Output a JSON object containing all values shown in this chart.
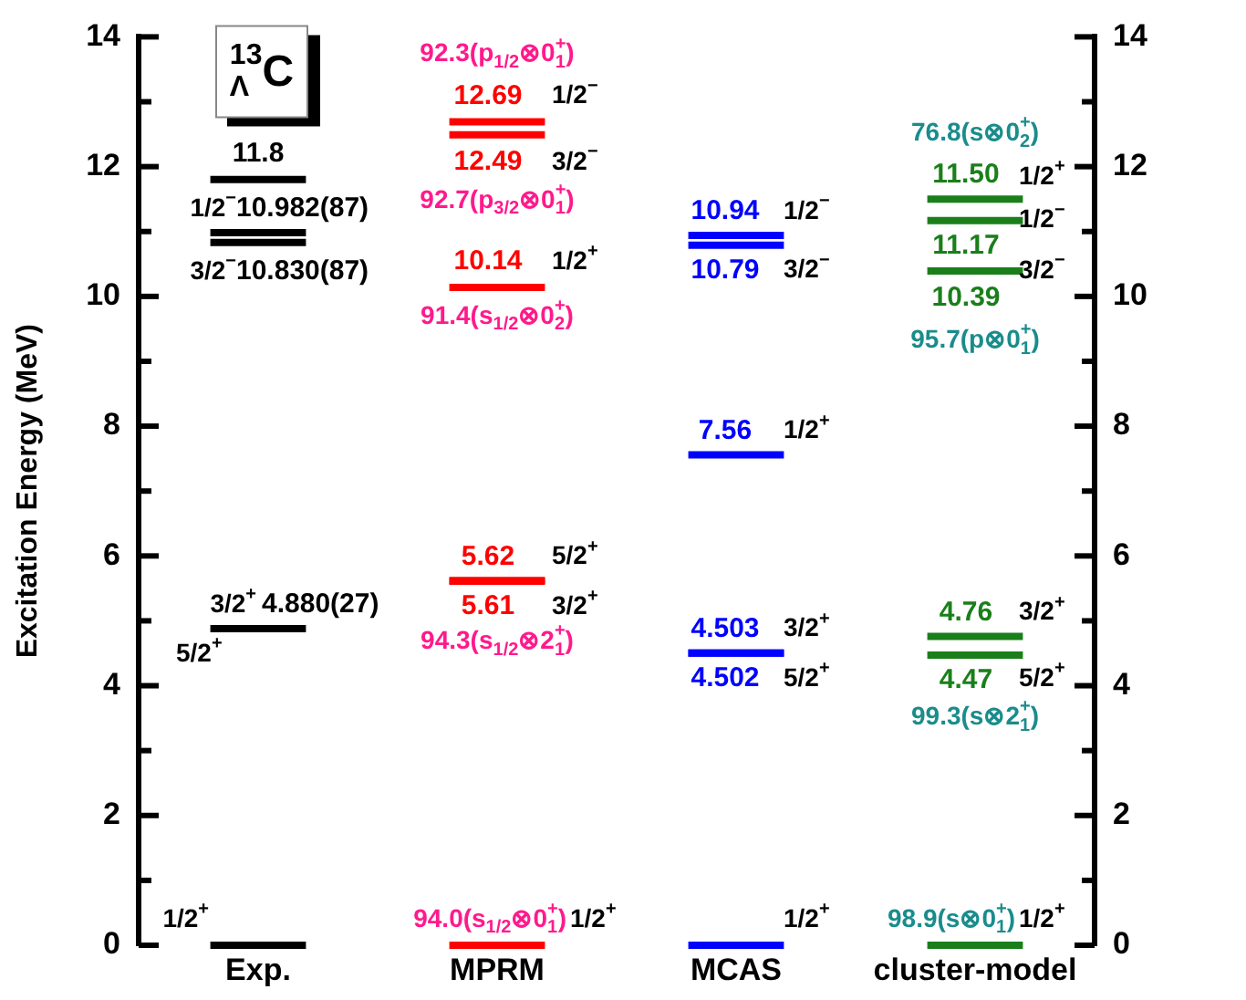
{
  "chart_data": {
    "type": "line",
    "ylabel": "Excitation Energy (MeV)",
    "categories": [
      null,
      null,
      "Exp.",
      null,
      null,
      null,
      null,
      "MPRM",
      null,
      null,
      null,
      null,
      "MCAS",
      null,
      null,
      null,
      null,
      "cluster-model",
      null,
      null
    ],
    "ylim": [
      0,
      14
    ],
    "yticks": [
      0,
      {
        "value": 1,
        "label": null
      },
      2,
      {
        "value": 3,
        "label": null
      },
      4,
      {
        "value": 5,
        "label": null
      },
      6,
      {
        "value": 7,
        "label": null
      },
      8,
      {
        "value": 9,
        "label": null
      },
      10,
      {
        "value": 11,
        "label": null
      },
      12,
      {
        "value": 13,
        "label": null
      },
      14
    ],
    "y2lim": [
      0,
      14
    ],
    "y2ticks": [
      0,
      {
        "value": 1,
        "label": null
      },
      2,
      {
        "value": 3,
        "label": null
      },
      4,
      {
        "value": 5,
        "label": null
      },
      6,
      {
        "value": 7,
        "label": null
      },
      8,
      {
        "value": 9,
        "label": null
      },
      10,
      {
        "value": 11,
        "label": null
      },
      12,
      {
        "value": 13,
        "label": null
      },
      14
    ],
    "series": [
      {
        "color": "#000000",
        "values": [
          null,
          0,
          0,
          0,
          null,
          null,
          null,
          null,
          null,
          null,
          null,
          null,
          null,
          null,
          null,
          null,
          null,
          null,
          null,
          null
        ]
      },
      {
        "color": "#000000",
        "values": [
          null,
          4.88,
          4.88,
          4.88,
          null,
          null,
          null,
          null,
          null,
          null,
          null,
          null,
          null,
          null,
          null,
          null,
          null,
          null,
          null,
          null
        ],
        "value_labels": [
          null,
          null,
          "4.880(27)",
          null,
          null,
          null,
          null,
          null,
          null,
          null,
          null,
          null,
          null,
          null,
          null,
          null,
          null,
          null,
          null,
          null
        ]
      },
      {
        "color": "#000000",
        "values": [
          null,
          10.83,
          10.83,
          10.83,
          null,
          null,
          null,
          null,
          null,
          null,
          null,
          null,
          null,
          null,
          null,
          null,
          null,
          null,
          null,
          null
        ],
        "value_labels": [
          null,
          null,
          "10.830(87)",
          null,
          null,
          null,
          null,
          null,
          null,
          null,
          null,
          null,
          null,
          null,
          null,
          null,
          null,
          null,
          null,
          null
        ]
      },
      {
        "color": "#000000",
        "values": [
          null,
          10.982,
          10.982,
          10.982,
          null,
          null,
          null,
          null,
          null,
          null,
          null,
          null,
          null,
          null,
          null,
          null,
          null,
          null,
          null,
          null
        ],
        "value_labels": [
          null,
          null,
          "10.982(87)",
          null,
          null,
          null,
          null,
          null,
          null,
          null,
          null,
          null,
          null,
          null,
          null,
          null,
          null,
          null,
          null,
          null
        ]
      },
      {
        "color": "#000000",
        "values": [
          null,
          11.8,
          11.8,
          11.8,
          null,
          null,
          null,
          null,
          null,
          null,
          null,
          null,
          null,
          null,
          null,
          null,
          null,
          null,
          null,
          null
        ],
        "value_labels": [
          null,
          null,
          "11.8",
          null,
          null,
          null,
          null,
          null,
          null,
          null,
          null,
          null,
          null,
          null,
          null,
          null,
          null,
          null,
          null,
          null
        ]
      },
      {
        "color": "#ff0000",
        "values": [
          null,
          null,
          null,
          null,
          null,
          null,
          0,
          0,
          0,
          null,
          null,
          null,
          null,
          null,
          null,
          null,
          null,
          null,
          null,
          null
        ]
      },
      {
        "color": "#ff0000",
        "values": [
          null,
          null,
          null,
          null,
          null,
          null,
          5.61,
          5.61,
          5.61,
          null,
          null,
          null,
          null,
          null,
          null,
          null,
          null,
          null,
          null,
          null
        ],
        "value_labels": [
          null,
          null,
          null,
          null,
          null,
          null,
          null,
          "5.61",
          null,
          null,
          null,
          null,
          null,
          null,
          null,
          null,
          null,
          null,
          null,
          null
        ]
      },
      {
        "color": "#ff0000",
        "values": [
          null,
          null,
          null,
          null,
          null,
          null,
          5.62,
          5.62,
          5.62,
          null,
          null,
          null,
          null,
          null,
          null,
          null,
          null,
          null,
          null,
          null
        ],
        "value_labels": [
          null,
          null,
          null,
          null,
          null,
          null,
          null,
          "5.62",
          null,
          null,
          null,
          null,
          null,
          null,
          null,
          null,
          null,
          null,
          null,
          null
        ]
      },
      {
        "color": "#ff0000",
        "values": [
          null,
          null,
          null,
          null,
          null,
          null,
          10.14,
          10.14,
          10.14,
          null,
          null,
          null,
          null,
          null,
          null,
          null,
          null,
          null,
          null,
          null
        ],
        "value_labels": [
          null,
          null,
          null,
          null,
          null,
          null,
          null,
          "10.14",
          null,
          null,
          null,
          null,
          null,
          null,
          null,
          null,
          null,
          null,
          null,
          null
        ]
      },
      {
        "color": "#ff0000",
        "values": [
          null,
          null,
          null,
          null,
          null,
          null,
          12.49,
          12.49,
          12.49,
          null,
          null,
          null,
          null,
          null,
          null,
          null,
          null,
          null,
          null,
          null
        ],
        "value_labels": [
          null,
          null,
          null,
          null,
          null,
          null,
          null,
          "12.49",
          null,
          null,
          null,
          null,
          null,
          null,
          null,
          null,
          null,
          null,
          null,
          null
        ]
      },
      {
        "color": "#ff0000",
        "values": [
          null,
          null,
          null,
          null,
          null,
          null,
          12.69,
          12.69,
          12.69,
          null,
          null,
          null,
          null,
          null,
          null,
          null,
          null,
          null,
          null,
          null
        ],
        "value_labels": [
          null,
          null,
          null,
          null,
          null,
          null,
          null,
          "12.69",
          null,
          null,
          null,
          null,
          null,
          null,
          null,
          null,
          null,
          null,
          null,
          null
        ]
      },
      {
        "color": "#0000ff",
        "values": [
          null,
          null,
          null,
          null,
          null,
          null,
          null,
          null,
          null,
          null,
          null,
          0,
          0,
          0,
          null,
          null,
          null,
          null,
          null,
          null
        ]
      },
      {
        "color": "#0000ff",
        "values": [
          null,
          null,
          null,
          null,
          null,
          null,
          null,
          null,
          null,
          null,
          null,
          4.502,
          4.502,
          4.502,
          null,
          null,
          null,
          null,
          null,
          null
        ],
        "value_labels": [
          null,
          null,
          null,
          null,
          null,
          null,
          null,
          null,
          null,
          null,
          null,
          null,
          "4.502",
          null,
          null,
          null,
          null,
          null,
          null,
          null
        ]
      },
      {
        "color": "#0000ff",
        "values": [
          null,
          null,
          null,
          null,
          null,
          null,
          null,
          null,
          null,
          null,
          null,
          4.503,
          4.503,
          4.503,
          null,
          null,
          null,
          null,
          null,
          null
        ],
        "value_labels": [
          null,
          null,
          null,
          null,
          null,
          null,
          null,
          null,
          null,
          null,
          null,
          null,
          "4.503",
          null,
          null,
          null,
          null,
          null,
          null,
          null
        ]
      },
      {
        "color": "#0000ff",
        "values": [
          null,
          null,
          null,
          null,
          null,
          null,
          null,
          null,
          null,
          null,
          null,
          7.56,
          7.56,
          7.56,
          null,
          null,
          null,
          null,
          null,
          null
        ],
        "value_labels": [
          null,
          null,
          null,
          null,
          null,
          null,
          null,
          null,
          null,
          null,
          null,
          null,
          "7.56",
          null,
          null,
          null,
          null,
          null,
          null,
          null
        ]
      },
      {
        "color": "#0000ff",
        "values": [
          null,
          null,
          null,
          null,
          null,
          null,
          null,
          null,
          null,
          null,
          null,
          10.79,
          10.79,
          10.79,
          null,
          null,
          null,
          null,
          null,
          null
        ],
        "value_labels": [
          null,
          null,
          null,
          null,
          null,
          null,
          null,
          null,
          null,
          null,
          null,
          null,
          "10.79",
          null,
          null,
          null,
          null,
          null,
          null,
          null
        ]
      },
      {
        "color": "#0000ff",
        "values": [
          null,
          null,
          null,
          null,
          null,
          null,
          null,
          null,
          null,
          null,
          null,
          10.94,
          10.94,
          10.94,
          null,
          null,
          null,
          null,
          null,
          null
        ],
        "value_labels": [
          null,
          null,
          null,
          null,
          null,
          null,
          null,
          null,
          null,
          null,
          null,
          null,
          "10.94",
          null,
          null,
          null,
          null,
          null,
          null,
          null
        ]
      },
      {
        "color": "#1a7f1a",
        "values": [
          null,
          null,
          null,
          null,
          null,
          null,
          null,
          null,
          null,
          null,
          null,
          null,
          null,
          null,
          null,
          null,
          0,
          0,
          0,
          null
        ]
      },
      {
        "color": "#1a7f1a",
        "values": [
          null,
          null,
          null,
          null,
          null,
          null,
          null,
          null,
          null,
          null,
          null,
          null,
          null,
          null,
          null,
          null,
          4.47,
          4.47,
          4.47,
          null
        ],
        "value_labels": [
          null,
          null,
          null,
          null,
          null,
          null,
          null,
          null,
          null,
          null,
          null,
          null,
          null,
          null,
          null,
          null,
          null,
          "4.47",
          null,
          null
        ]
      },
      {
        "color": "#1a7f1a",
        "values": [
          null,
          null,
          null,
          null,
          null,
          null,
          null,
          null,
          null,
          null,
          null,
          null,
          null,
          null,
          null,
          null,
          4.76,
          4.76,
          4.76,
          null
        ],
        "value_labels": [
          null,
          null,
          null,
          null,
          null,
          null,
          null,
          null,
          null,
          null,
          null,
          null,
          null,
          null,
          null,
          null,
          null,
          "4.76",
          null,
          null
        ]
      },
      {
        "color": "#1a7f1a",
        "values": [
          null,
          null,
          null,
          null,
          null,
          null,
          null,
          null,
          null,
          null,
          null,
          null,
          null,
          null,
          null,
          null,
          10.39,
          10.39,
          10.39,
          null
        ],
        "value_labels": [
          null,
          null,
          null,
          null,
          null,
          null,
          null,
          null,
          null,
          null,
          null,
          null,
          null,
          null,
          null,
          null,
          null,
          "10.39",
          null,
          null
        ]
      },
      {
        "color": "#1a7f1a",
        "values": [
          null,
          null,
          null,
          null,
          null,
          null,
          null,
          null,
          null,
          null,
          null,
          null,
          null,
          null,
          null,
          null,
          11.17,
          11.17,
          11.17,
          null
        ],
        "value_labels": [
          null,
          null,
          null,
          null,
          null,
          null,
          null,
          null,
          null,
          null,
          null,
          null,
          null,
          null,
          null,
          null,
          null,
          "11.17",
          null,
          null
        ]
      },
      {
        "color": "#1a7f1a",
        "values": [
          null,
          null,
          null,
          null,
          null,
          null,
          null,
          null,
          null,
          null,
          null,
          null,
          null,
          null,
          null,
          null,
          11.5,
          11.5,
          11.5,
          null
        ],
        "value_labels": [
          null,
          null,
          null,
          null,
          null,
          null,
          null,
          null,
          null,
          null,
          null,
          null,
          null,
          null,
          null,
          null,
          null,
          "11.50",
          null,
          null
        ]
      }
    ],
    "annotations": [
      {
        "text": "1/2$^{+}$",
        "x": "Exp.",
        "y": 0
      },
      {
        "text": "3/2$^{+}$",
        "x": "Exp.",
        "y": 4.88
      },
      {
        "text": "5/2$^{+}$",
        "x": "Exp.",
        "y": 4.88
      },
      {
        "text": "1/2$^{−}$",
        "x": "Exp.",
        "y": 10.982
      },
      {
        "text": "3/2$^{−}$",
        "x": "Exp.",
        "y": 10.83
      },
      {
        "text": "92.3(p$_{1/2}$⊗0$^{+}$$_{1}$)",
        "x": "MPRM",
        "y": 12.69
      },
      {
        "text": "1/2$^{−}$",
        "x": "MPRM",
        "y": 12.69
      },
      {
        "text": "3/2$^{−}$",
        "x": "MPRM",
        "y": 12.49
      },
      {
        "text": "92.7(p$_{3/2}$⊗0$^{+}$$_{1}$)",
        "x": "MPRM",
        "y": 12.49
      },
      {
        "text": "1/2$^{+}$",
        "x": "MPRM",
        "y": 10.14
      },
      {
        "text": "91.4(s$_{1/2}$⊗0$^{+}$$_{2}$)",
        "x": "MPRM",
        "y": 10.14
      },
      {
        "text": "5/2$^{+}$",
        "x": "MPRM",
        "y": 5.62
      },
      {
        "text": "3/2$^{+}$",
        "x": "MPRM",
        "y": 5.61
      },
      {
        "text": "94.3(s$_{1/2}$⊗2$^{+}$$_{1}$)",
        "x": "MPRM",
        "y": 5.61
      },
      {
        "text": "94.0(s$_{1/2}$⊗0$^{+}$$_{1}$)",
        "x": "MPRM",
        "y": 0
      },
      {
        "text": "1/2$^{+}$",
        "x": "MPRM",
        "y": 0
      },
      {
        "text": "1/2$^{−}$",
        "x": "MCAS",
        "y": 10.94
      },
      {
        "text": "3/2$^{−}$",
        "x": "MCAS",
        "y": 10.79
      },
      {
        "text": "1/2$^{+}$",
        "x": "MCAS",
        "y": 7.56
      },
      {
        "text": "3/2$^{+}$",
        "x": "MCAS",
        "y": 4.503
      },
      {
        "text": "5/2$^{+}$",
        "x": "MCAS",
        "y": 4.502
      },
      {
        "text": "1/2$^{+}$",
        "x": "MCAS",
        "y": 0
      },
      {
        "text": "76.8(s⊗0$^{+}$$_{2}$)",
        "x": "cluster-model",
        "y": 11.5
      },
      {
        "text": "1/2$^{+}$",
        "x": "cluster-model",
        "y": 11.5
      },
      {
        "text": "1/2$^{−}$",
        "x": "cluster-model",
        "y": 11.17
      },
      {
        "text": "3/2$^{−}$",
        "x": "cluster-model",
        "y": 10.39
      },
      {
        "text": "95.7(p⊗0$^{+}$$_{1}$)",
        "x": "cluster-model",
        "y": 10.39
      },
      {
        "text": "3/2$^{+}$",
        "x": "cluster-model",
        "y": 4.76
      },
      {
        "text": "5/2$^{+}$",
        "x": "cluster-model",
        "y": 4.47
      },
      {
        "text": "99.3(s⊗2$^{+}$$_{1}$)",
        "x": "cluster-model",
        "y": 4.47
      },
      {
        "text": "98.9(s⊗0$^{+}$$_{1}$)",
        "x": "cluster-model",
        "y": 0
      },
      {
        "text": "1/2$^{+}$",
        "x": "cluster-model",
        "y": 0
      },
      "$^{13}$$_{Λ}$C"
    ]
  }
}
